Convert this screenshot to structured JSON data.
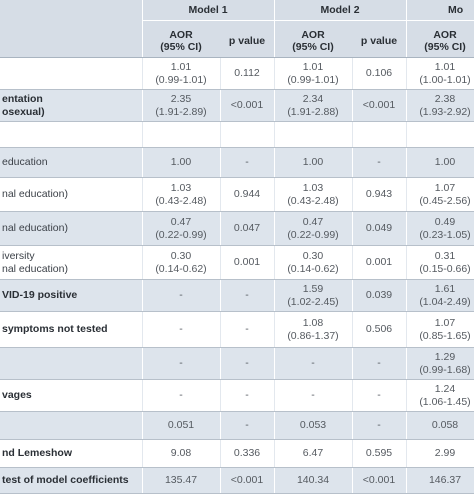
{
  "models": [
    "Model 1",
    "Model 2",
    "Mo"
  ],
  "sub_headers": {
    "aor": "AOR",
    "ci": "(95% CI)",
    "p": "p value"
  },
  "rows": [
    {
      "label": [
        "",
        ""
      ],
      "bold": false,
      "shade": false,
      "m1": [
        "1.01",
        "(0.99-1.01)"
      ],
      "p1": "0.112",
      "m2": [
        "1.01",
        "(0.99-1.01)"
      ],
      "p2": "0.106",
      "m3": [
        "1.01",
        "(1.00-1.01)"
      ]
    },
    {
      "label": [
        "entation",
        "osexual)"
      ],
      "bold": true,
      "shade": true,
      "m1": [
        "2.35",
        "(1.91-2.89)"
      ],
      "p1": "<0.001",
      "m2": [
        "2.34",
        "(1.91-2.88)"
      ],
      "p2": "<0.001",
      "m3": [
        "2.38",
        "(1.93-2.92)"
      ]
    },
    {
      "label": [
        "",
        ""
      ],
      "bold": false,
      "shade": false,
      "m1": [
        "",
        ""
      ],
      "p1": "",
      "m2": [
        "",
        ""
      ],
      "p2": "",
      "m3": [
        "",
        ""
      ]
    },
    {
      "label": [
        "education",
        ""
      ],
      "bold": false,
      "shade": true,
      "m1": [
        "1.00",
        ""
      ],
      "p1": "-",
      "m2": [
        "1.00",
        ""
      ],
      "p2": "-",
      "m3": [
        "1.00",
        ""
      ]
    },
    {
      "label": [
        "",
        "nal education)"
      ],
      "bold": false,
      "shade": false,
      "m1": [
        "1.03",
        "(0.43-2.48)"
      ],
      "p1": "0.944",
      "m2": [
        "1.03",
        "(0.43-2.48)"
      ],
      "p2": "0.943",
      "m3": [
        "1.07",
        "(0.45-2.56)"
      ]
    },
    {
      "label": [
        "",
        "nal education)"
      ],
      "bold": false,
      "shade": true,
      "m1": [
        "0.47",
        "(0.22-0.99)"
      ],
      "p1": "0.047",
      "m2": [
        "0.47",
        "(0.22-0.99)"
      ],
      "p2": "0.049",
      "m3": [
        "0.49",
        "(0.23-1.05)"
      ]
    },
    {
      "label": [
        "iversity",
        "nal education)"
      ],
      "bold": false,
      "shade": false,
      "m1": [
        "0.30",
        "(0.14-0.62)"
      ],
      "p1": "0.001",
      "m2": [
        "0.30",
        "(0.14-0.62)"
      ],
      "p2": "0.001",
      "m3": [
        "0.31",
        "(0.15-0.66)"
      ]
    },
    {
      "label": [
        "VID-19 positive",
        ""
      ],
      "bold": true,
      "shade": true,
      "m1": [
        "-",
        ""
      ],
      "p1": "-",
      "m2": [
        "1.59",
        "(1.02-2.45)"
      ],
      "p2": "0.039",
      "m3": [
        "1.61",
        "(1.04-2.49)"
      ]
    },
    {
      "label": [
        "symptoms not tested",
        ""
      ],
      "bold": true,
      "shade": false,
      "m1": [
        "-",
        ""
      ],
      "p1": "-",
      "m2": [
        "1.08",
        "(0.86-1.37)"
      ],
      "p2": "0.506",
      "m3": [
        "1.07",
        "(0.85-1.65)"
      ]
    },
    {
      "label": [
        "",
        ""
      ],
      "bold": false,
      "shade": true,
      "m1": [
        "-",
        ""
      ],
      "p1": "-",
      "m2": [
        "-",
        ""
      ],
      "p2": "-",
      "m3": [
        "1.29",
        "(0.99-1.68)"
      ]
    },
    {
      "label": [
        "vages",
        ""
      ],
      "bold": true,
      "shade": false,
      "m1": [
        "-",
        ""
      ],
      "p1": "-",
      "m2": [
        "-",
        ""
      ],
      "p2": "-",
      "m3": [
        "1.24",
        "(1.06-1.45)"
      ]
    },
    {
      "label": [
        "",
        ""
      ],
      "bold": false,
      "shade": true,
      "m1": [
        "0.051",
        ""
      ],
      "p1": "-",
      "m2": [
        "0.053",
        ""
      ],
      "p2": "-",
      "m3": [
        "0.058",
        ""
      ]
    },
    {
      "label": [
        "nd Lemeshow",
        ""
      ],
      "bold": true,
      "shade": false,
      "m1": [
        "9.08",
        ""
      ],
      "p1": "0.336",
      "m2": [
        "6.47",
        ""
      ],
      "p2": "0.595",
      "m3": [
        "2.99",
        ""
      ]
    },
    {
      "label": [
        "test of model coefficients",
        ""
      ],
      "bold": true,
      "shade": true,
      "m1": [
        "135.47",
        ""
      ],
      "p1": "<0.001",
      "m2": [
        "140.34",
        ""
      ],
      "p2": "<0.001",
      "m3": [
        "146.37",
        ""
      ]
    }
  ]
}
